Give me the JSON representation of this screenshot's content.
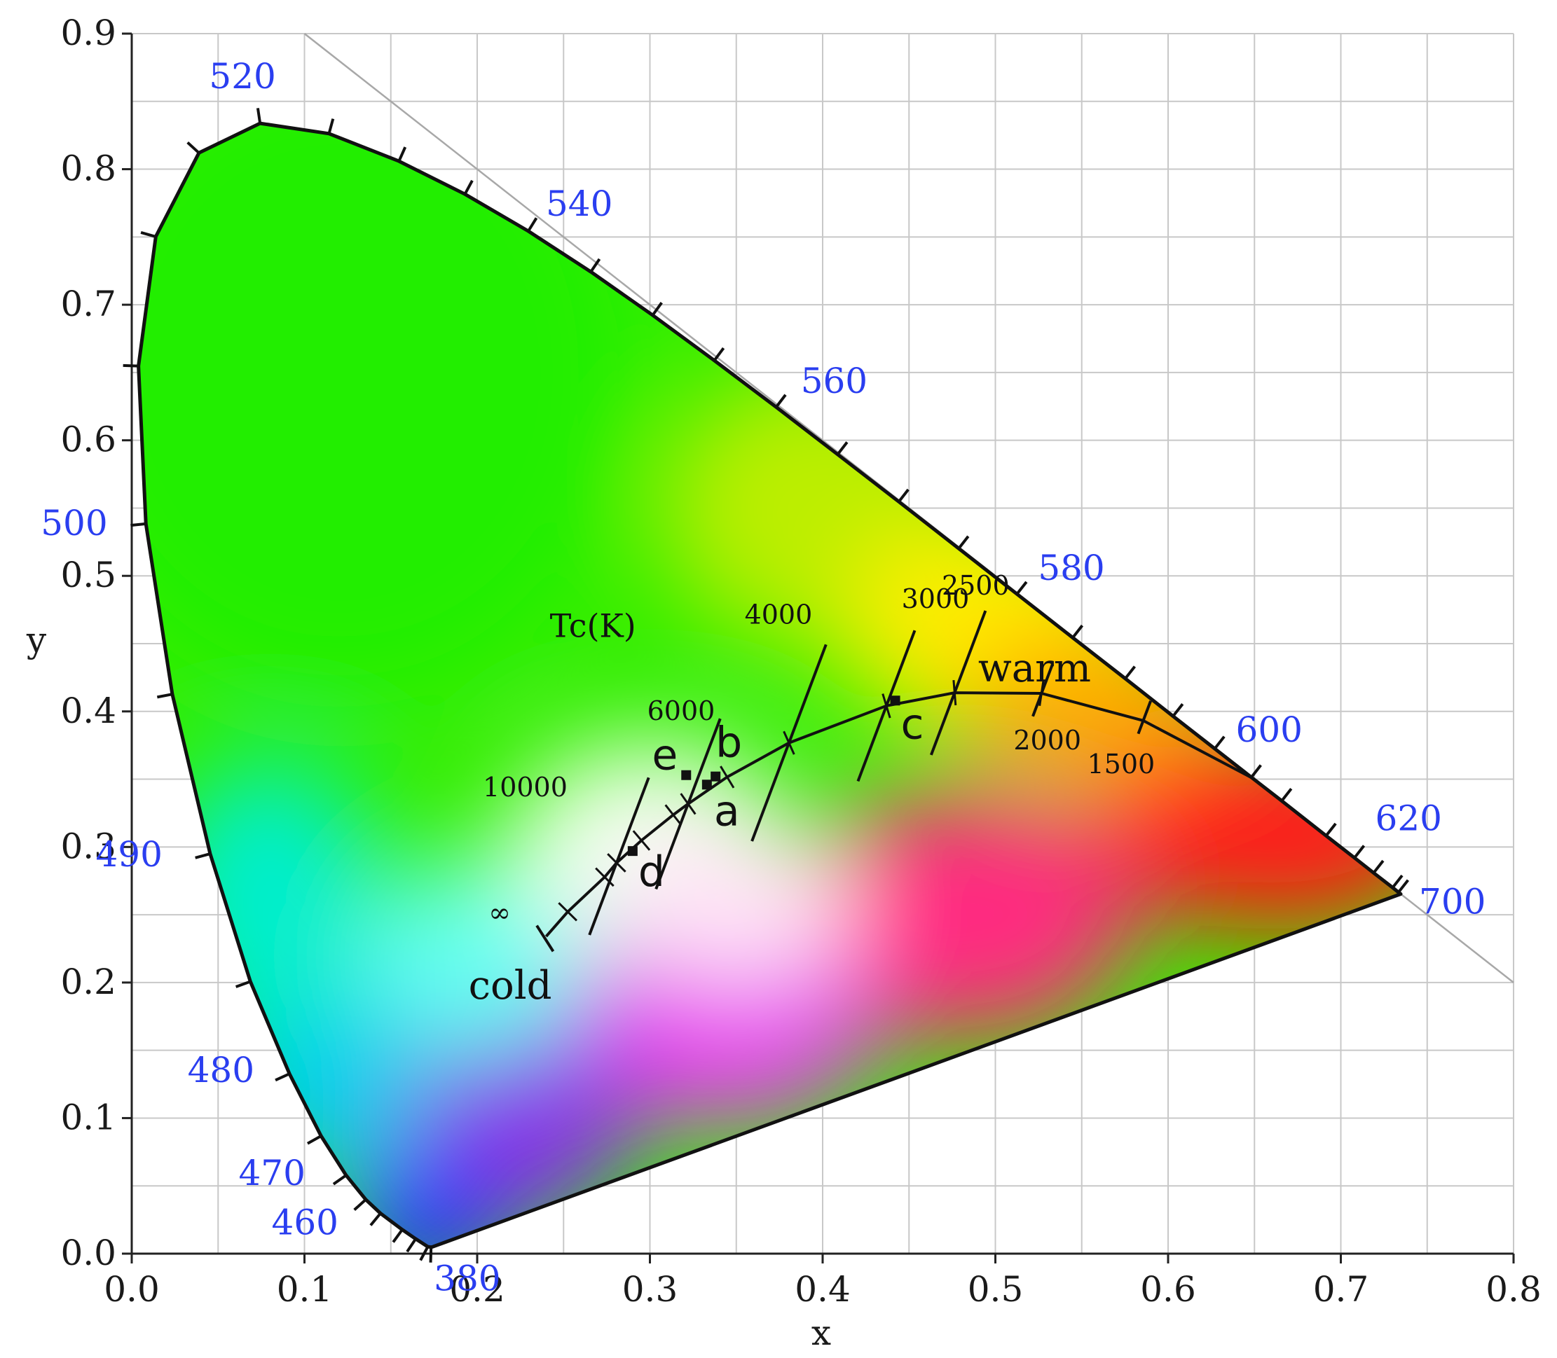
{
  "chart_data": {
    "type": "scatter",
    "title": "",
    "xlabel": "x",
    "ylabel": "y",
    "xlim": [
      0,
      0.8
    ],
    "ylim": [
      0,
      0.9
    ],
    "grid": true,
    "x_ticks": [
      "0.0",
      "0.1",
      "0.2",
      "0.3",
      "0.4",
      "0.5",
      "0.6",
      "0.7",
      "0.8"
    ],
    "y_ticks": [
      "0.0",
      "0.1",
      "0.2",
      "0.3",
      "0.4",
      "0.5",
      "0.6",
      "0.7",
      "0.8",
      "0.9"
    ],
    "spectral_locus": {
      "wavelength_unit": "nm",
      "points": [
        {
          "nm": 380,
          "x": 0.1741,
          "y": 0.005
        },
        {
          "nm": 400,
          "x": 0.1733,
          "y": 0.0048
        },
        {
          "nm": 420,
          "x": 0.1714,
          "y": 0.0051
        },
        {
          "nm": 440,
          "x": 0.1644,
          "y": 0.0109
        },
        {
          "nm": 450,
          "x": 0.1566,
          "y": 0.0177
        },
        {
          "nm": 460,
          "x": 0.144,
          "y": 0.0297
        },
        {
          "nm": 465,
          "x": 0.1355,
          "y": 0.0399
        },
        {
          "nm": 470,
          "x": 0.1241,
          "y": 0.0578
        },
        {
          "nm": 475,
          "x": 0.1096,
          "y": 0.0868
        },
        {
          "nm": 480,
          "x": 0.0913,
          "y": 0.1327
        },
        {
          "nm": 485,
          "x": 0.0687,
          "y": 0.2007
        },
        {
          "nm": 490,
          "x": 0.0454,
          "y": 0.295
        },
        {
          "nm": 495,
          "x": 0.0235,
          "y": 0.4127
        },
        {
          "nm": 500,
          "x": 0.0082,
          "y": 0.5384
        },
        {
          "nm": 505,
          "x": 0.0039,
          "y": 0.6548
        },
        {
          "nm": 510,
          "x": 0.0139,
          "y": 0.7502
        },
        {
          "nm": 515,
          "x": 0.0389,
          "y": 0.812
        },
        {
          "nm": 520,
          "x": 0.0743,
          "y": 0.8338
        },
        {
          "nm": 525,
          "x": 0.1142,
          "y": 0.8262
        },
        {
          "nm": 530,
          "x": 0.1547,
          "y": 0.8059
        },
        {
          "nm": 535,
          "x": 0.1929,
          "y": 0.7816
        },
        {
          "nm": 540,
          "x": 0.2296,
          "y": 0.7543
        },
        {
          "nm": 545,
          "x": 0.2658,
          "y": 0.7243
        },
        {
          "nm": 550,
          "x": 0.3016,
          "y": 0.6923
        },
        {
          "nm": 555,
          "x": 0.3373,
          "y": 0.6589
        },
        {
          "nm": 560,
          "x": 0.3731,
          "y": 0.6245
        },
        {
          "nm": 565,
          "x": 0.4087,
          "y": 0.5896
        },
        {
          "nm": 570,
          "x": 0.4441,
          "y": 0.5547
        },
        {
          "nm": 575,
          "x": 0.4788,
          "y": 0.5202
        },
        {
          "nm": 580,
          "x": 0.5125,
          "y": 0.4866
        },
        {
          "nm": 585,
          "x": 0.5448,
          "y": 0.4544
        },
        {
          "nm": 590,
          "x": 0.5752,
          "y": 0.4242
        },
        {
          "nm": 595,
          "x": 0.6029,
          "y": 0.3965
        },
        {
          "nm": 600,
          "x": 0.627,
          "y": 0.3725
        },
        {
          "nm": 605,
          "x": 0.6482,
          "y": 0.3514
        },
        {
          "nm": 610,
          "x": 0.6658,
          "y": 0.334
        },
        {
          "nm": 620,
          "x": 0.6915,
          "y": 0.3083
        },
        {
          "nm": 630,
          "x": 0.7079,
          "y": 0.292
        },
        {
          "nm": 640,
          "x": 0.719,
          "y": 0.2809
        },
        {
          "nm": 660,
          "x": 0.73,
          "y": 0.27
        },
        {
          "nm": 680,
          "x": 0.7334,
          "y": 0.2666
        },
        {
          "nm": 700,
          "x": 0.7347,
          "y": 0.2653
        }
      ],
      "labels": [
        {
          "nm": "380",
          "x": 0.1741,
          "y": 0.005
        },
        {
          "nm": "460",
          "x": 0.144,
          "y": 0.0297
        },
        {
          "nm": "470",
          "x": 0.1241,
          "y": 0.0578
        },
        {
          "nm": "480",
          "x": 0.0913,
          "y": 0.1327
        },
        {
          "nm": "490",
          "x": 0.0454,
          "y": 0.295
        },
        {
          "nm": "500",
          "x": 0.0082,
          "y": 0.5384
        },
        {
          "nm": "520",
          "x": 0.0743,
          "y": 0.8338
        },
        {
          "nm": "540",
          "x": 0.2296,
          "y": 0.7543
        },
        {
          "nm": "560",
          "x": 0.3731,
          "y": 0.6245
        },
        {
          "nm": "580",
          "x": 0.5125,
          "y": 0.4866
        },
        {
          "nm": "600",
          "x": 0.627,
          "y": 0.3725
        },
        {
          "nm": "620",
          "x": 0.6915,
          "y": 0.3083
        },
        {
          "nm": "700",
          "x": 0.7347,
          "y": 0.2653
        }
      ]
    },
    "planckian_locus": {
      "title": "Tc(K)",
      "points": [
        {
          "x": 0.2399,
          "y": 0.234
        },
        {
          "x": 0.2524,
          "y": 0.2522
        },
        {
          "x": 0.2738,
          "y": 0.2778
        },
        {
          "x": 0.2807,
          "y": 0.2883
        },
        {
          "x": 0.2951,
          "y": 0.3048
        },
        {
          "x": 0.3135,
          "y": 0.3237
        },
        {
          "x": 0.3221,
          "y": 0.3318
        },
        {
          "x": 0.3447,
          "y": 0.3516
        },
        {
          "x": 0.3805,
          "y": 0.3768
        },
        {
          "x": 0.4369,
          "y": 0.4041
        },
        {
          "x": 0.4764,
          "y": 0.4138
        },
        {
          "x": 0.5267,
          "y": 0.4133
        },
        {
          "x": 0.5856,
          "y": 0.3932
        },
        {
          "x": 0.65,
          "y": 0.35
        }
      ],
      "isotherms": [
        {
          "label": "10000",
          "K": 10000,
          "x": 0.2807,
          "y": 0.2883
        },
        {
          "label": "6000",
          "K": 6000,
          "x": 0.3221,
          "y": 0.3318
        },
        {
          "label": "4000",
          "K": 4000,
          "x": 0.3805,
          "y": 0.3768
        },
        {
          "label": "3000",
          "K": 3000,
          "x": 0.4369,
          "y": 0.4041
        },
        {
          "label": "2500",
          "K": 2500,
          "x": 0.4764,
          "y": 0.4138
        },
        {
          "label": "2000",
          "K": 2000,
          "x": 0.5267,
          "y": 0.4133
        },
        {
          "label": "1500",
          "K": 1500,
          "x": 0.5856,
          "y": 0.3932
        }
      ],
      "infinity_label": "∞"
    },
    "measured_points": [
      {
        "label": "a",
        "x": 0.333,
        "y": 0.346
      },
      {
        "label": "b",
        "x": 0.338,
        "y": 0.352
      },
      {
        "label": "c",
        "x": 0.442,
        "y": 0.408
      },
      {
        "label": "d",
        "x": 0.29,
        "y": 0.297
      },
      {
        "label": "e",
        "x": 0.321,
        "y": 0.353
      }
    ],
    "annotations": [
      {
        "text": "cold",
        "x": 0.195,
        "y": 0.188
      },
      {
        "text": "warm",
        "x": 0.49,
        "y": 0.422
      }
    ]
  }
}
